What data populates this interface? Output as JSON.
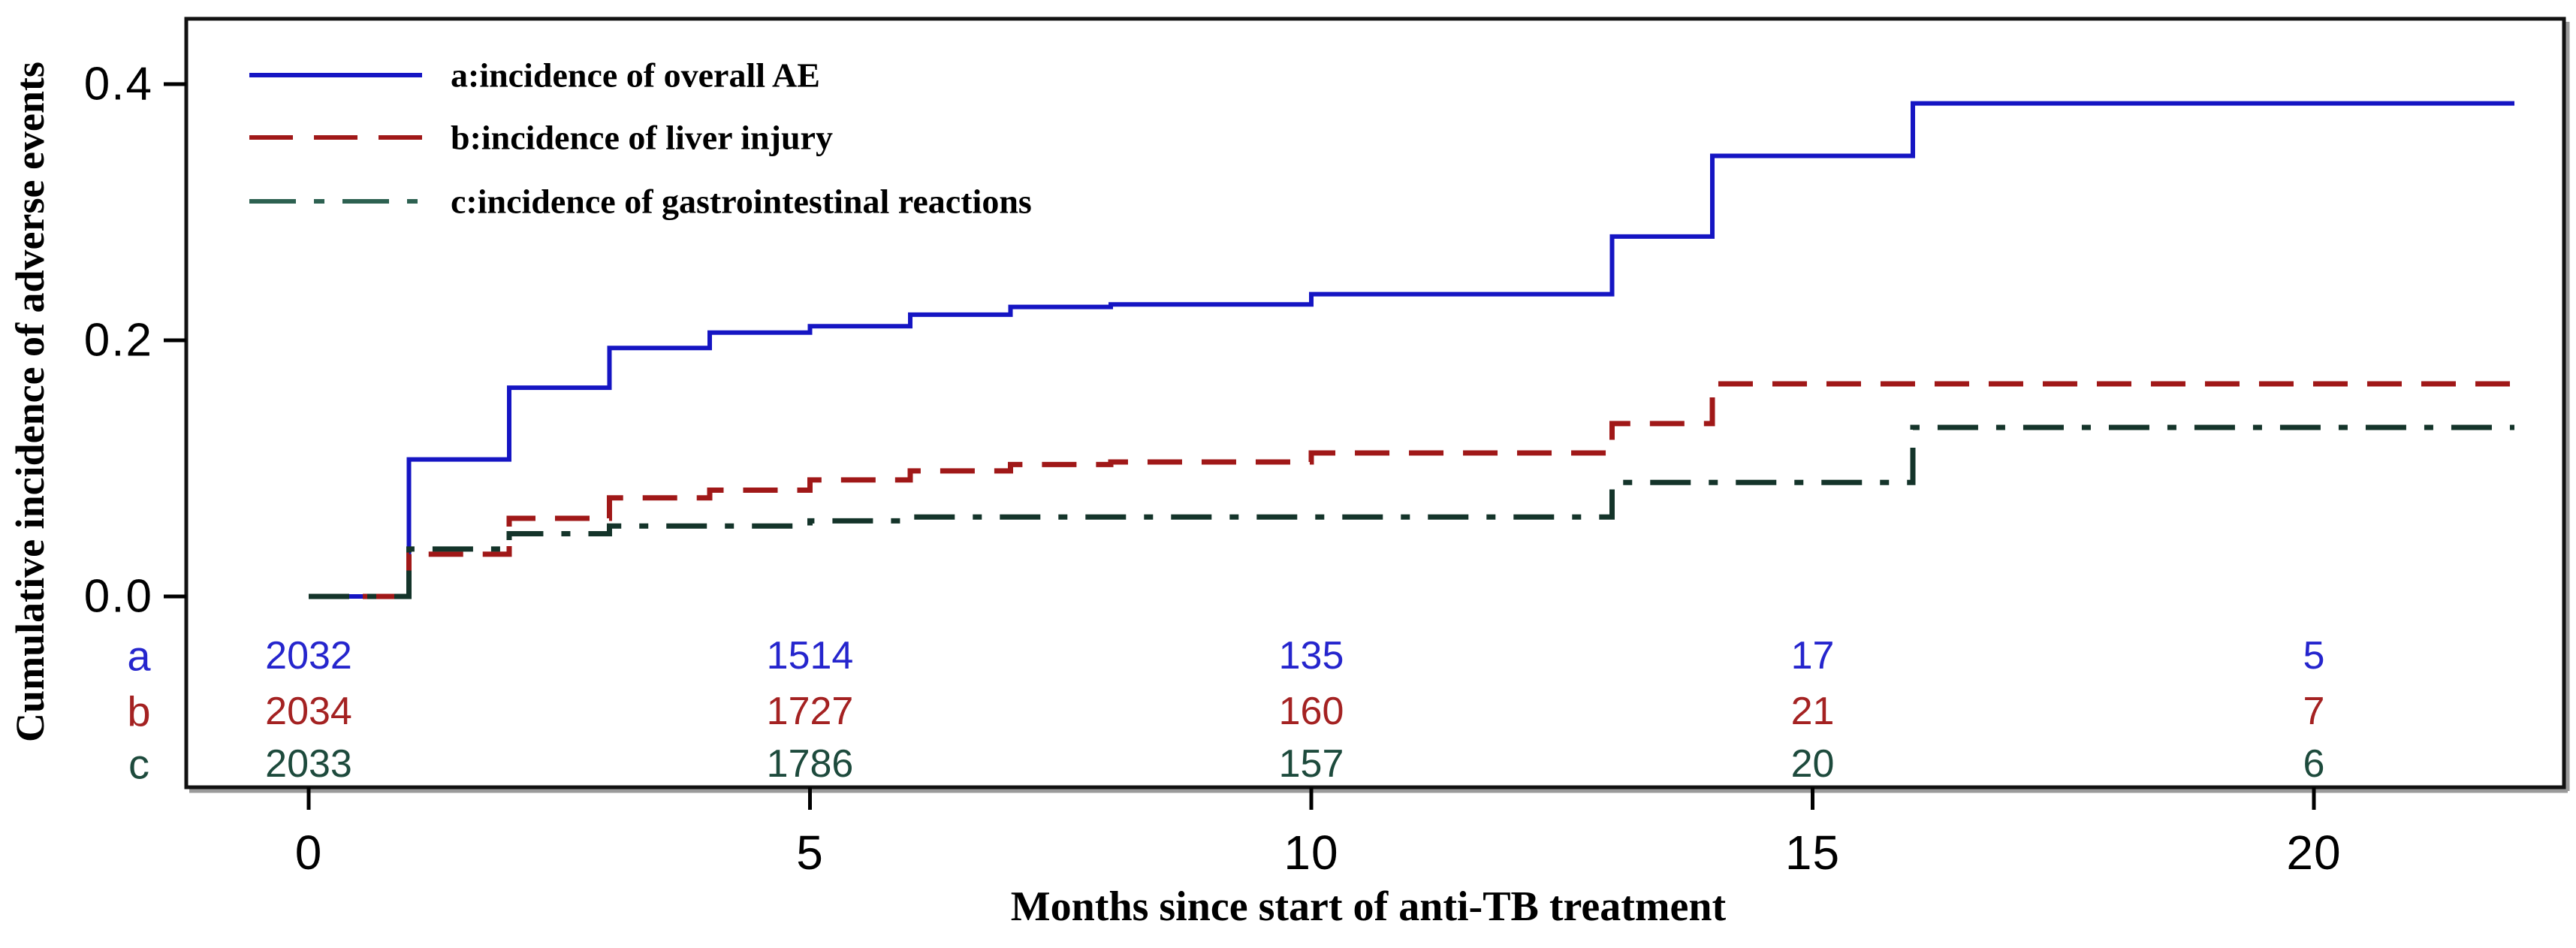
{
  "figure": {
    "background": "#ffffff",
    "frame_color": "#111111"
  },
  "y_axis": {
    "title": "Cumulative incidence of adverse events",
    "tick_labels": [
      "0.0",
      "0.2",
      "0.4"
    ],
    "tick_values": [
      0.0,
      0.2,
      0.4
    ]
  },
  "x_axis": {
    "title": "Months since start of anti-TB treatment",
    "tick_labels": [
      "0",
      "5",
      "10",
      "15",
      "20"
    ],
    "tick_values": [
      0,
      5,
      10,
      15,
      20
    ]
  },
  "legend": {
    "items": [
      {
        "key": "a",
        "label": "a:incidence of overall AE",
        "swatch_color": "#1515c3",
        "style": "solid"
      },
      {
        "key": "b",
        "label": "b:incidence of liver injury",
        "swatch_color": "#a01818",
        "style": "dashed"
      },
      {
        "key": "c",
        "label": "c:incidence of gastrointestinal reactions",
        "swatch_color": "#2d6151",
        "style": "dashdot"
      }
    ]
  },
  "chart_data": {
    "type": "line",
    "subtype": "step-cumulative-incidence",
    "title": "",
    "xlabel": "Months since start of anti-TB treatment",
    "ylabel": "Cumulative incidence of adverse events",
    "xlim": [
      0,
      22.4
    ],
    "ylim": [
      0,
      0.45
    ],
    "x_end": 22,
    "grid": false,
    "legend_position": "upper-left-inside",
    "x_ticks": [
      0,
      5,
      10,
      15,
      20
    ],
    "y_ticks": [
      0.0,
      0.2,
      0.4
    ],
    "series": [
      {
        "name": "a:incidence of overall AE",
        "color": "#1515c3",
        "style": "solid",
        "line_width": 6,
        "steps": [
          [
            0,
            0.0
          ],
          [
            1,
            0.107
          ],
          [
            2,
            0.163
          ],
          [
            3,
            0.194
          ],
          [
            4,
            0.206
          ],
          [
            5,
            0.211
          ],
          [
            6,
            0.22
          ],
          [
            7,
            0.226
          ],
          [
            8,
            0.228
          ],
          [
            10,
            0.236
          ],
          [
            13,
            0.281
          ],
          [
            14,
            0.344
          ],
          [
            16,
            0.385
          ]
        ]
      },
      {
        "name": "b:incidence of liver injury",
        "color": "#a01818",
        "style": "dashed",
        "line_width": 7,
        "steps": [
          [
            0,
            0.0
          ],
          [
            1,
            0.033
          ],
          [
            2,
            0.061
          ],
          [
            3,
            0.077
          ],
          [
            4,
            0.083
          ],
          [
            5,
            0.091
          ],
          [
            6,
            0.098
          ],
          [
            7,
            0.103
          ],
          [
            8,
            0.105
          ],
          [
            10,
            0.112
          ],
          [
            13,
            0.135
          ],
          [
            14,
            0.166
          ]
        ]
      },
      {
        "name": "c:incidence of gastrointestinal reactions",
        "color": "#14342a",
        "style": "dashdot",
        "line_width": 7,
        "steps": [
          [
            0,
            0.0
          ],
          [
            1,
            0.037
          ],
          [
            2,
            0.049
          ],
          [
            3,
            0.055
          ],
          [
            5,
            0.059
          ],
          [
            6,
            0.062
          ],
          [
            13,
            0.089
          ],
          [
            16,
            0.132
          ]
        ]
      }
    ],
    "at_risk_table": {
      "columns_months": [
        0,
        5,
        10,
        15,
        20
      ],
      "rows": [
        {
          "label": "a",
          "text_color": "#2525cd",
          "values": [
            "2032",
            "1514",
            "135",
            "17",
            "5"
          ]
        },
        {
          "label": "b",
          "text_color": "#a42222",
          "values": [
            "2034",
            "1727",
            "160",
            "21",
            "7"
          ]
        },
        {
          "label": "c",
          "text_color": "#1d4a3c",
          "values": [
            "2033",
            "1786",
            "157",
            "20",
            "6"
          ]
        }
      ]
    }
  }
}
